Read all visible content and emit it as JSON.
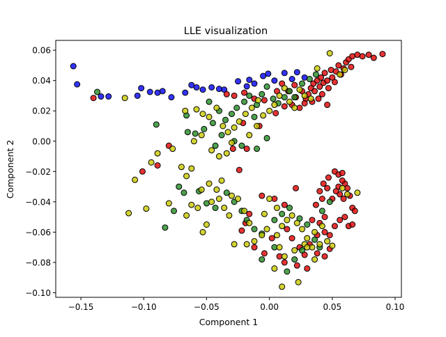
{
  "chart_data": {
    "type": "scatter",
    "title": "LLE visualization",
    "xlabel": "Component 1",
    "ylabel": "Component 2",
    "xlim": [
      -0.17,
      0.105
    ],
    "ylim": [
      -0.103,
      0.0665
    ],
    "grid": false,
    "x_ticks": [
      "−0.15",
      "−0.10",
      "−0.05",
      "0.00",
      "0.05",
      "0.10"
    ],
    "x_tick_values": [
      -0.15,
      -0.1,
      -0.05,
      0.0,
      0.05,
      0.1
    ],
    "y_ticks": [
      "0.06",
      "0.04",
      "0.02",
      "0.00",
      "−0.02",
      "−0.04",
      "−0.06",
      "−0.08",
      "−0.10"
    ],
    "y_tick_values": [
      0.06,
      0.04,
      0.02,
      0.0,
      -0.02,
      -0.04,
      -0.06,
      -0.08,
      -0.1
    ],
    "series": [
      {
        "color": "#0000ff",
        "points": [
          [
            -0.156,
            0.0495
          ],
          [
            -0.153,
            0.0375
          ],
          [
            -0.134,
            0.0295
          ],
          [
            -0.105,
            0.03
          ],
          [
            -0.102,
            0.035
          ],
          [
            -0.095,
            0.0325
          ],
          [
            -0.089,
            0.032
          ],
          [
            -0.085,
            0.033
          ],
          [
            -0.078,
            0.029
          ],
          [
            -0.067,
            0.032
          ],
          [
            -0.062,
            0.037
          ],
          [
            -0.058,
            0.0355
          ],
          [
            -0.053,
            0.034
          ],
          [
            -0.046,
            0.0355
          ],
          [
            -0.036,
            0.034
          ],
          [
            -0.025,
            0.0395
          ],
          [
            -0.016,
            0.0405
          ],
          [
            -0.005,
            0.043
          ],
          [
            -0.001,
            0.0445
          ],
          [
            0.004,
            0.04
          ],
          [
            0.012,
            0.045
          ],
          [
            0.022,
            0.0455
          ],
          [
            0.028,
            0.042
          ],
          [
            -0.04,
            0.0345
          ],
          [
            -0.018,
            0.0362
          ],
          [
            -0.128,
            0.0295
          ],
          [
            0.018,
            0.041
          ],
          [
            -0.012,
            0.038
          ]
        ]
      },
      {
        "color": "#e00000",
        "points": [
          [
            -0.14,
            0.0285
          ],
          [
            -0.101,
            -0.02
          ],
          [
            -0.089,
            -0.016
          ],
          [
            -0.08,
            -0.003
          ],
          [
            -0.029,
            -0.005
          ],
          [
            -0.018,
            -0.005
          ],
          [
            -0.024,
            -0.019
          ],
          [
            -0.021,
            0.012
          ],
          [
            -0.008,
            0.01
          ],
          [
            0.005,
            0.0185
          ],
          [
            0.012,
            0.023
          ],
          [
            0.018,
            0.024
          ],
          [
            0.021,
            0.029
          ],
          [
            0.024,
            0.022
          ],
          [
            0.029,
            0.028
          ],
          [
            0.031,
            0.031
          ],
          [
            0.033,
            0.035
          ],
          [
            0.035,
            0.038
          ],
          [
            0.036,
            0.033
          ],
          [
            0.038,
            0.04
          ],
          [
            0.04,
            0.036
          ],
          [
            0.041,
            0.042
          ],
          [
            0.043,
            0.0385
          ],
          [
            0.044,
            0.045
          ],
          [
            0.046,
            0.04
          ],
          [
            0.047,
            0.035
          ],
          [
            0.049,
            0.047
          ],
          [
            0.05,
            0.042
          ],
          [
            0.052,
            0.039
          ],
          [
            0.053,
            0.046
          ],
          [
            0.055,
            0.05
          ],
          [
            0.057,
            0.044
          ],
          [
            0.059,
            0.048
          ],
          [
            0.061,
            0.052
          ],
          [
            0.063,
            0.054
          ],
          [
            0.066,
            0.056
          ],
          [
            0.07,
            0.057
          ],
          [
            0.074,
            0.056
          ],
          [
            0.079,
            0.057
          ],
          [
            0.083,
            0.055
          ],
          [
            0.09,
            0.0575
          ],
          [
            0.065,
            0.049
          ],
          [
            0.042,
            0.031
          ],
          [
            0.039,
            0.028
          ],
          [
            0.034,
            0.026
          ],
          [
            0.028,
            0.025
          ],
          [
            0.026,
            0.033
          ],
          [
            0.02,
            0.037
          ],
          [
            0.015,
            0.033
          ],
          [
            0.01,
            0.038
          ],
          [
            0.006,
            0.033
          ],
          [
            -0.004,
            0.027
          ],
          [
            -0.012,
            0.028
          ],
          [
            -0.02,
            0.032
          ],
          [
            -0.028,
            0.03
          ],
          [
            -0.034,
            0.031
          ],
          [
            0.046,
            0.024
          ],
          [
            0.052,
            -0.02
          ],
          [
            0.055,
            -0.022
          ],
          [
            0.058,
            -0.021
          ],
          [
            0.055,
            -0.03
          ],
          [
            0.06,
            -0.028
          ],
          [
            0.062,
            -0.031
          ],
          [
            0.064,
            -0.036
          ],
          [
            0.066,
            -0.044
          ],
          [
            0.068,
            -0.046
          ],
          [
            0.059,
            -0.038
          ],
          [
            0.056,
            -0.035
          ],
          [
            0.053,
            -0.033
          ],
          [
            0.05,
            -0.038
          ],
          [
            0.046,
            -0.031
          ],
          [
            0.043,
            -0.028
          ],
          [
            0.04,
            -0.033
          ],
          [
            0.047,
            -0.024
          ],
          [
            0.042,
            -0.038
          ],
          [
            0.037,
            -0.042
          ],
          [
            0.034,
            -0.052
          ],
          [
            0.04,
            -0.054
          ],
          [
            0.038,
            -0.062
          ],
          [
            0.044,
            -0.06
          ],
          [
            0.048,
            -0.062
          ],
          [
            0.052,
            -0.056
          ],
          [
            0.056,
            -0.052
          ],
          [
            0.06,
            -0.05
          ],
          [
            0.063,
            -0.056
          ],
          [
            0.066,
            -0.055
          ],
          [
            0.048,
            -0.071
          ],
          [
            0.044,
            -0.076
          ],
          [
            0.038,
            -0.074
          ],
          [
            0.032,
            -0.068
          ],
          [
            0.028,
            -0.075
          ],
          [
            0.024,
            -0.07
          ],
          [
            0.018,
            -0.064
          ],
          [
            0.014,
            -0.058
          ],
          [
            0.012,
            -0.042
          ],
          [
            0.004,
            -0.038
          ],
          [
            -0.006,
            -0.036
          ],
          [
            -0.016,
            -0.048
          ],
          [
            -0.019,
            -0.054
          ],
          [
            -0.022,
            -0.059
          ],
          [
            -0.012,
            -0.07
          ],
          [
            -0.004,
            -0.074
          ],
          [
            0.002,
            -0.064
          ],
          [
            0.008,
            -0.076
          ],
          [
            0.012,
            -0.08
          ],
          [
            0.022,
            -0.082
          ],
          [
            0.03,
            -0.084
          ],
          [
            0.021,
            -0.031
          ],
          [
            0.044,
            -0.05
          ],
          [
            0.058,
            -0.026
          ]
        ]
      },
      {
        "color": "#228b22",
        "points": [
          [
            -0.137,
            0.0325
          ],
          [
            -0.09,
            0.011
          ],
          [
            -0.066,
            0.017
          ],
          [
            -0.065,
            0.006
          ],
          [
            -0.059,
            0.005
          ],
          [
            -0.052,
            0.008
          ],
          [
            -0.045,
            0.012
          ],
          [
            -0.04,
            0.02
          ],
          [
            -0.035,
            0.014
          ],
          [
            -0.03,
            0.018
          ],
          [
            -0.026,
            0.022
          ],
          [
            -0.02,
            0.026
          ],
          [
            -0.016,
            0.03
          ],
          [
            -0.012,
            0.016
          ],
          [
            -0.01,
            0.024
          ],
          [
            -0.006,
            0.031
          ],
          [
            -0.002,
            0.036
          ],
          [
            0.003,
            0.028
          ],
          [
            0.007,
            0.025
          ],
          [
            0.012,
            0.029
          ],
          [
            0.016,
            0.033
          ],
          [
            0.02,
            0.029
          ],
          [
            0.026,
            0.038
          ],
          [
            0.032,
            0.041
          ],
          [
            0.037,
            0.044
          ],
          [
            -0.048,
            0.026
          ],
          [
            -0.043,
            -0.003
          ],
          [
            -0.038,
            0.004
          ],
          [
            -0.028,
            0.0
          ],
          [
            -0.022,
            -0.003
          ],
          [
            -0.01,
            -0.005
          ],
          [
            -0.002,
            0.002
          ],
          [
            -0.083,
            -0.057
          ],
          [
            -0.076,
            -0.046
          ],
          [
            -0.068,
            -0.034
          ],
          [
            -0.056,
            -0.033
          ],
          [
            -0.05,
            -0.041
          ],
          [
            -0.043,
            -0.044
          ],
          [
            -0.034,
            -0.034
          ],
          [
            -0.028,
            -0.04
          ],
          [
            -0.022,
            -0.046
          ],
          [
            -0.018,
            -0.052
          ],
          [
            -0.012,
            -0.058
          ],
          [
            -0.006,
            -0.061
          ],
          [
            0.004,
            -0.052
          ],
          [
            0.01,
            -0.048
          ],
          [
            0.016,
            -0.044
          ],
          [
            0.024,
            -0.051
          ],
          [
            0.03,
            -0.055
          ],
          [
            0.036,
            -0.065
          ],
          [
            0.026,
            -0.072
          ],
          [
            0.02,
            -0.078
          ],
          [
            0.014,
            -0.086
          ],
          [
            0.004,
            -0.07
          ],
          [
            -0.006,
            -0.078
          ],
          [
            0.042,
            -0.046
          ],
          [
            0.048,
            -0.04
          ],
          [
            0.04,
            -0.07
          ],
          [
            -0.072,
            -0.03
          ]
        ]
      },
      {
        "color": "#c8c800",
        "points": [
          [
            -0.115,
            0.0285
          ],
          [
            -0.112,
            -0.0475
          ],
          [
            -0.107,
            -0.0255
          ],
          [
            -0.098,
            -0.0445
          ],
          [
            -0.094,
            -0.014
          ],
          [
            -0.089,
            -0.008
          ],
          [
            -0.08,
            -0.041
          ],
          [
            -0.077,
            -0.005
          ],
          [
            -0.07,
            -0.017
          ],
          [
            -0.066,
            -0.023
          ],
          [
            -0.066,
            -0.049
          ],
          [
            -0.062,
            -0.042
          ],
          [
            -0.057,
            -0.044
          ],
          [
            -0.05,
            -0.055
          ],
          [
            -0.053,
            -0.06
          ],
          [
            -0.046,
            -0.04
          ],
          [
            -0.04,
            -0.038
          ],
          [
            -0.036,
            -0.044
          ],
          [
            -0.032,
            -0.049
          ],
          [
            -0.03,
            -0.036
          ],
          [
            -0.025,
            -0.038
          ],
          [
            -0.02,
            -0.046
          ],
          [
            -0.016,
            -0.054
          ],
          [
            -0.028,
            -0.068
          ],
          [
            -0.018,
            -0.068
          ],
          [
            -0.012,
            -0.066
          ],
          [
            -0.006,
            -0.062
          ],
          [
            -0.002,
            -0.058
          ],
          [
            0.006,
            -0.062
          ],
          [
            0.01,
            -0.056
          ],
          [
            0.014,
            -0.052
          ],
          [
            0.018,
            -0.049
          ],
          [
            0.022,
            -0.054
          ],
          [
            0.026,
            -0.058
          ],
          [
            0.03,
            -0.064
          ],
          [
            0.034,
            -0.07
          ],
          [
            0.04,
            -0.068
          ],
          [
            0.046,
            -0.066
          ],
          [
            0.05,
            -0.069
          ],
          [
            0.042,
            -0.056
          ],
          [
            0.036,
            -0.06
          ],
          [
            0.028,
            -0.068
          ],
          [
            0.02,
            -0.072
          ],
          [
            0.012,
            -0.076
          ],
          [
            0.008,
            -0.07
          ],
          [
            0.004,
            -0.084
          ],
          [
            0.01,
            -0.096
          ],
          [
            0.023,
            -0.093
          ],
          [
            0.03,
            -0.07
          ],
          [
            0.036,
            -0.078
          ],
          [
            0.062,
            -0.035
          ],
          [
            0.058,
            -0.031
          ],
          [
            0.07,
            -0.034
          ],
          [
            -0.067,
            0.02
          ],
          [
            -0.058,
            0.021
          ],
          [
            -0.053,
            0.018
          ],
          [
            -0.048,
            0.016
          ],
          [
            -0.042,
            0.022
          ],
          [
            -0.037,
            0.01
          ],
          [
            -0.033,
            0.006
          ],
          [
            -0.028,
            0.009
          ],
          [
            -0.024,
            0.013
          ],
          [
            -0.019,
            0.018
          ],
          [
            -0.014,
            0.022
          ],
          [
            -0.009,
            0.027
          ],
          [
            -0.005,
            0.017
          ],
          [
            0.0,
            0.02
          ],
          [
            0.004,
            0.024
          ],
          [
            0.008,
            0.03
          ],
          [
            0.012,
            0.035
          ],
          [
            0.016,
            0.026
          ],
          [
            0.02,
            0.022
          ],
          [
            0.024,
            0.034
          ],
          [
            0.028,
            0.03
          ],
          [
            0.033,
            0.028
          ],
          [
            0.038,
            0.048
          ],
          [
            0.048,
            0.058
          ],
          [
            0.056,
            0.044
          ],
          [
            0.06,
            0.047
          ],
          [
            -0.06,
            0.0
          ],
          [
            -0.054,
            0.004
          ],
          [
            -0.046,
            -0.006
          ],
          [
            -0.04,
            -0.01
          ],
          [
            -0.034,
            -0.008
          ],
          [
            -0.03,
            -0.001
          ],
          [
            -0.016,
            0.004
          ],
          [
            -0.01,
            0.01
          ],
          [
            -0.062,
            -0.018
          ],
          [
            -0.054,
            -0.032
          ],
          [
            -0.048,
            -0.028
          ],
          [
            -0.042,
            -0.032
          ],
          [
            -0.038,
            -0.026
          ],
          [
            0.0,
            -0.038
          ],
          [
            0.006,
            -0.044
          ],
          [
            -0.004,
            -0.048
          ]
        ]
      }
    ]
  }
}
